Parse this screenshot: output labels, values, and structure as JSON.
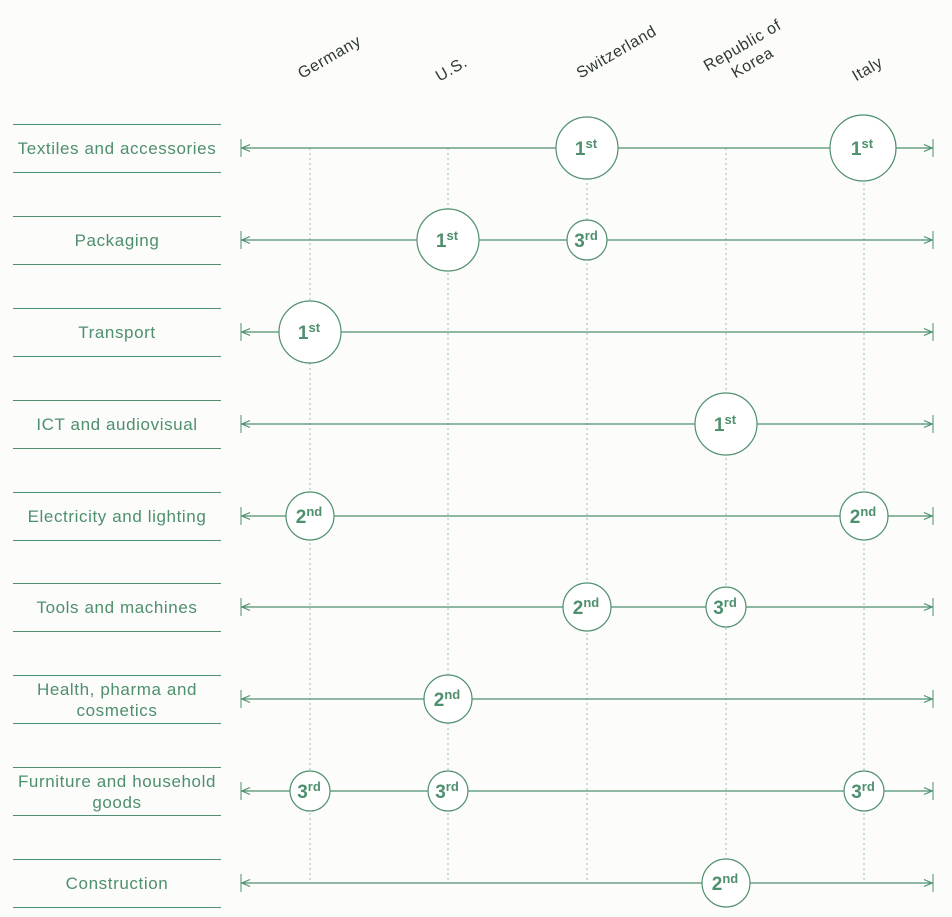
{
  "countries": [
    "Germany",
    "U.S.",
    "Switzerland",
    "Republic of\nKorea",
    "Italy"
  ],
  "sectors": [
    {
      "label": "Textiles and accessories",
      "ranks": [
        {
          "country": 2,
          "num": "1",
          "suffix": "st"
        },
        {
          "country": 4,
          "num": "1",
          "suffix": "st"
        }
      ]
    },
    {
      "label": "Packaging",
      "ranks": [
        {
          "country": 1,
          "num": "1",
          "suffix": "st"
        },
        {
          "country": 2,
          "num": "3",
          "suffix": "rd"
        }
      ]
    },
    {
      "label": "Transport",
      "ranks": [
        {
          "country": 0,
          "num": "1",
          "suffix": "st"
        }
      ]
    },
    {
      "label": "ICT and audiovisual",
      "ranks": [
        {
          "country": 3,
          "num": "1",
          "suffix": "st"
        }
      ]
    },
    {
      "label": "Electricity and lighting",
      "ranks": [
        {
          "country": 0,
          "num": "2",
          "suffix": "nd"
        },
        {
          "country": 4,
          "num": "2",
          "suffix": "nd"
        }
      ]
    },
    {
      "label": "Tools and machines",
      "ranks": [
        {
          "country": 2,
          "num": "2",
          "suffix": "nd"
        },
        {
          "country": 3,
          "num": "3",
          "suffix": "rd"
        }
      ]
    },
    {
      "label": "Health, pharma and cosmetics",
      "ranks": [
        {
          "country": 1,
          "num": "2",
          "suffix": "nd"
        }
      ]
    },
    {
      "label": "Furniture and household goods",
      "ranks": [
        {
          "country": 0,
          "num": "3",
          "suffix": "rd"
        },
        {
          "country": 1,
          "num": "3",
          "suffix": "rd"
        },
        {
          "country": 4,
          "num": "3",
          "suffix": "rd"
        }
      ]
    },
    {
      "label": "Construction",
      "ranks": [
        {
          "country": 3,
          "num": "2",
          "suffix": "nd"
        }
      ]
    }
  ],
  "colors": {
    "accent": "#4e8f6d",
    "label_text": "#2d3a33",
    "background": "#fcfcfb"
  }
}
